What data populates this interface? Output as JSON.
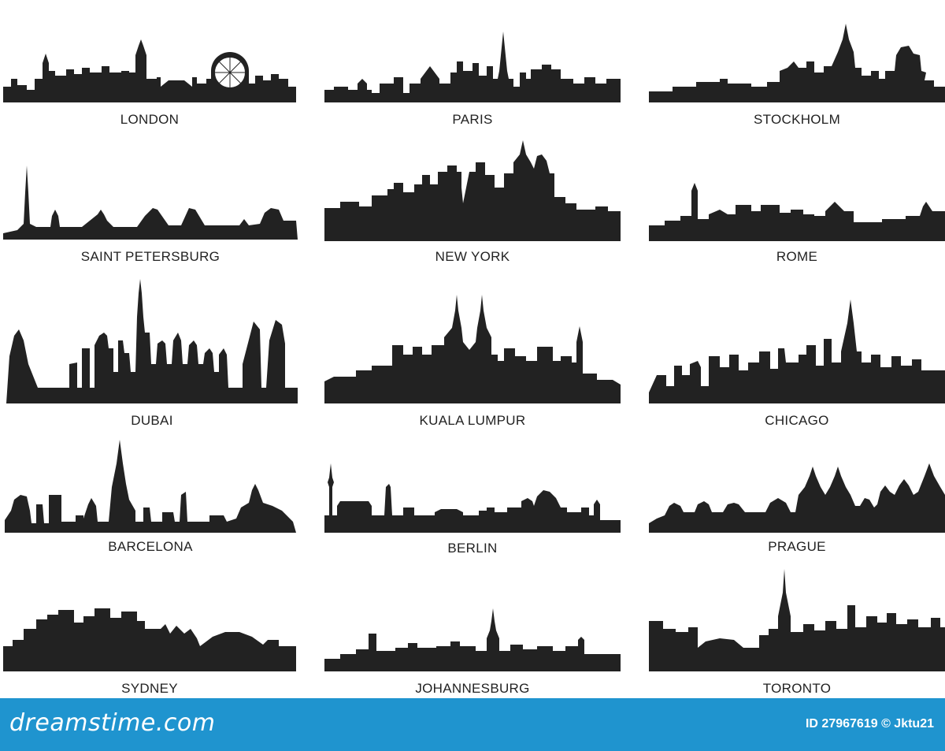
{
  "cities": [
    {
      "name": "LONDON"
    },
    {
      "name": "PARIS"
    },
    {
      "name": "STOCKHOLM"
    },
    {
      "name": "SAINT  PETERSBURG"
    },
    {
      "name": "NEW YORK"
    },
    {
      "name": "ROME"
    },
    {
      "name": "DUBAI"
    },
    {
      "name": "KUALA  LUMPUR"
    },
    {
      "name": "CHICAGO"
    },
    {
      "name": "BARCELONA"
    },
    {
      "name": "BERLIN"
    },
    {
      "name": "PRAGUE"
    },
    {
      "name": "SYDNEY"
    },
    {
      "name": "JOHANNESBURG"
    },
    {
      "name": "TORONTO"
    }
  ],
  "footer": {
    "brand": "dreamstime.com",
    "stock_id": "ID 27967619 © Jktu21"
  },
  "colors": {
    "silhouette": "#222222",
    "footer_bg": "#1f94cf"
  }
}
